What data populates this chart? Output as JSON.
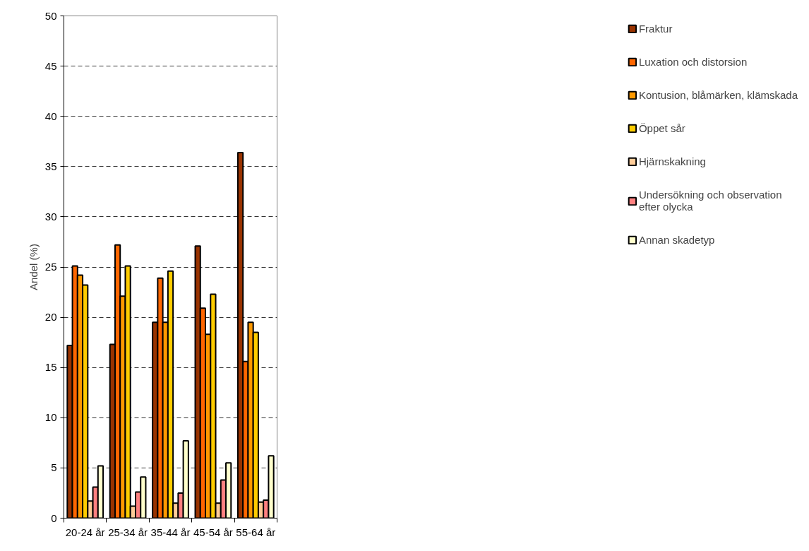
{
  "chart_data": {
    "type": "bar",
    "ylabel": "Andel (%)",
    "categories": [
      "20-24 år",
      "25-34 år",
      "35-44 år",
      "45-54 år",
      "55-64 år"
    ],
    "series": [
      {
        "name": "Fraktur",
        "color": "#993300",
        "values": [
          17.2,
          17.3,
          19.5,
          27.1,
          36.4
        ]
      },
      {
        "name": "Luxation och distorsion",
        "color": "#ff6600",
        "values": [
          25.1,
          27.2,
          23.9,
          20.9,
          15.6
        ]
      },
      {
        "name": "Kontusion, blåmärken, klämskada",
        "color": "#ff9900",
        "values": [
          24.2,
          22.1,
          19.5,
          18.3,
          19.5
        ]
      },
      {
        "name": "Öppet sår",
        "color": "#ffcc00",
        "values": [
          23.2,
          25.1,
          24.6,
          22.3,
          18.5
        ]
      },
      {
        "name": "Hjärnskakning",
        "color": "#ffcc99",
        "values": [
          1.7,
          1.2,
          1.5,
          1.5,
          1.6
        ]
      },
      {
        "name": "Undersökning och observation efter olycka",
        "color": "#ff8080",
        "values": [
          3.1,
          2.6,
          2.5,
          3.8,
          1.8
        ]
      },
      {
        "name": "Annan skadetyp",
        "color": "#ffffcc",
        "values": [
          5.2,
          4.1,
          7.7,
          5.5,
          6.2
        ]
      }
    ],
    "ylim": [
      0,
      50
    ],
    "yticks": [
      0,
      5,
      10,
      15,
      20,
      25,
      30,
      35,
      40,
      45,
      50
    ],
    "grid": "y",
    "legend": "right"
  }
}
